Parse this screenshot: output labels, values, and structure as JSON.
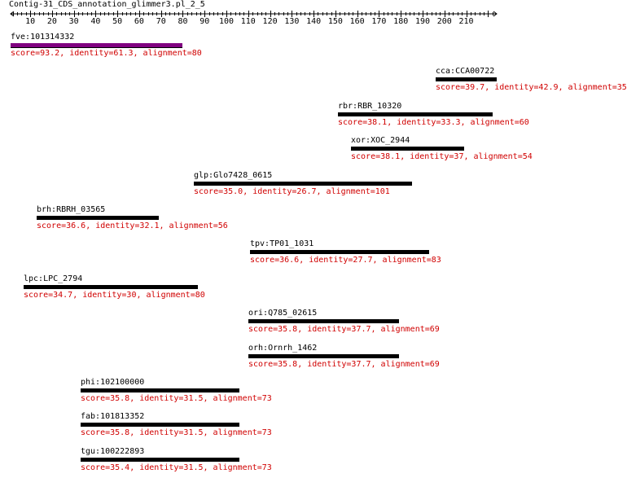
{
  "title": "Contig-31_CDS_annotation_glimmer3.pl_2_5",
  "colors": {
    "axis": "#000000",
    "label": "#000000",
    "score": "#d00000",
    "bar_default": "#000000",
    "bar_highlight": "#800080"
  },
  "axis": {
    "min": 1,
    "max": 224,
    "tick_labels": [
      "10",
      "20",
      "30",
      "40",
      "50",
      "60",
      "70",
      "80",
      "90",
      "100",
      "110",
      "120",
      "130",
      "140",
      "150",
      "160",
      "170",
      "180",
      "190",
      "200",
      "210"
    ]
  },
  "hits": [
    {
      "name": "fve:101314332",
      "score_text": "score=93.2, identity=61.3, alignment=80",
      "start": 1,
      "end": 80,
      "highlight": true
    },
    {
      "name": "cca:CCA00722",
      "score_text": "score=39.7, identity=42.9, alignment=35",
      "start": 196,
      "end": 224,
      "highlight": false
    },
    {
      "name": "rbr:RBR_10320",
      "score_text": "score=38.1, identity=33.3, alignment=60",
      "start": 151,
      "end": 222,
      "highlight": false
    },
    {
      "name": "xor:XOC_2944",
      "score_text": "score=38.1, identity=37, alignment=54",
      "start": 157,
      "end": 209,
      "highlight": false
    },
    {
      "name": "glp:Glo7428_0615",
      "score_text": "score=35.0, identity=26.7, alignment=101",
      "start": 85,
      "end": 185,
      "highlight": false
    },
    {
      "name": "brh:RBRH_03565",
      "score_text": "score=36.6, identity=32.1, alignment=56",
      "start": 13,
      "end": 69,
      "highlight": false
    },
    {
      "name": "tpv:TP01_1031",
      "score_text": "score=36.6, identity=27.7, alignment=83",
      "start": 111,
      "end": 193,
      "highlight": false
    },
    {
      "name": "lpc:LPC_2794",
      "score_text": "score=34.7, identity=30, alignment=80",
      "start": 7,
      "end": 87,
      "highlight": false
    },
    {
      "name": "ori:Q785_02615",
      "score_text": "score=35.8, identity=37.7, alignment=69",
      "start": 110,
      "end": 179,
      "highlight": false
    },
    {
      "name": "orh:Ornrh_1462",
      "score_text": "score=35.8, identity=37.7, alignment=69",
      "start": 110,
      "end": 179,
      "highlight": false
    },
    {
      "name": "phi:102100000",
      "score_text": "score=35.8, identity=31.5, alignment=73",
      "start": 33,
      "end": 106,
      "highlight": false
    },
    {
      "name": "fab:101813352",
      "score_text": "score=35.8, identity=31.5, alignment=73",
      "start": 33,
      "end": 106,
      "highlight": false
    },
    {
      "name": "tgu:100222893",
      "score_text": "score=35.4, identity=31.5, alignment=73",
      "start": 33,
      "end": 106,
      "highlight": false
    }
  ]
}
